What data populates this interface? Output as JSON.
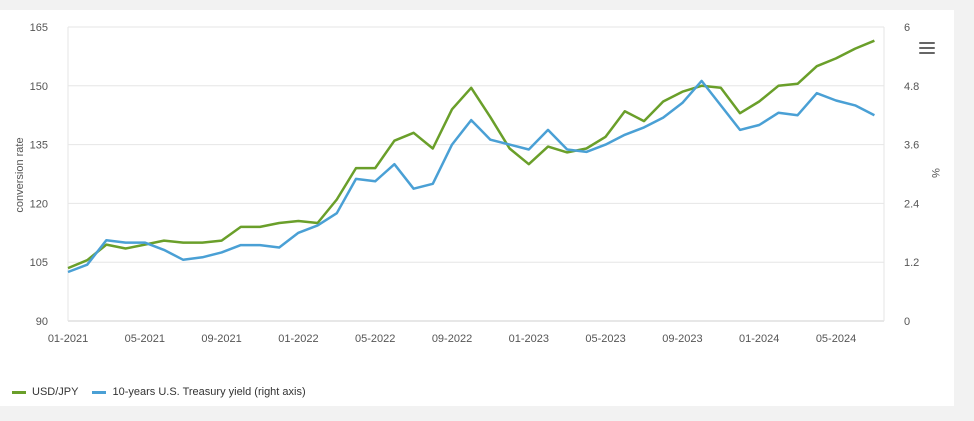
{
  "chart_data": {
    "type": "line",
    "x_ticks": [
      "01-2021",
      "05-2021",
      "09-2021",
      "01-2022",
      "05-2022",
      "09-2022",
      "01-2023",
      "05-2023",
      "09-2023",
      "01-2024",
      "05-2024"
    ],
    "y_left": {
      "label": "conversion rate",
      "ticks": [
        "90",
        "105",
        "120",
        "135",
        "150",
        "165"
      ],
      "range": [
        90,
        165
      ]
    },
    "y_right": {
      "label": "%",
      "ticks": [
        "0",
        "1.2",
        "2.4",
        "3.6",
        "4.8",
        "6"
      ],
      "range": [
        0,
        6
      ]
    },
    "grid": true,
    "legend_position": "bottom-left",
    "series": [
      {
        "name": "USD/JPY",
        "axis": "left",
        "color": "#6a9f2a",
        "x": [
          "2021-01",
          "2021-02",
          "2021-03",
          "2021-04",
          "2021-05",
          "2021-06",
          "2021-07",
          "2021-08",
          "2021-09",
          "2021-10",
          "2021-11",
          "2021-12",
          "2022-01",
          "2022-02",
          "2022-03",
          "2022-04",
          "2022-05",
          "2022-06",
          "2022-07",
          "2022-08",
          "2022-09",
          "2022-10",
          "2022-11",
          "2022-12",
          "2023-01",
          "2023-02",
          "2023-03",
          "2023-04",
          "2023-05",
          "2023-06",
          "2023-07",
          "2023-08",
          "2023-09",
          "2023-10",
          "2023-11",
          "2023-12",
          "2024-01",
          "2024-02",
          "2024-03",
          "2024-04",
          "2024-05",
          "2024-06",
          "2024-07"
        ],
        "values": [
          103.5,
          105.5,
          109.5,
          108.5,
          109.5,
          110.5,
          110.0,
          110.0,
          110.5,
          114.0,
          114.0,
          115.0,
          115.5,
          115.0,
          121.0,
          129.0,
          129.0,
          136.0,
          138.0,
          134.0,
          144.0,
          149.5,
          142.0,
          134.0,
          130.0,
          134.5,
          133.0,
          134.0,
          137.0,
          143.5,
          141.0,
          146.0,
          148.5,
          150.0,
          149.5,
          143.0,
          146.0,
          150.0,
          150.5,
          155.0,
          157.0,
          159.5,
          161.5
        ]
      },
      {
        "name": "10-years U.S. Treasury yield (right axis)",
        "axis": "right",
        "color": "#4aa0d5",
        "x": [
          "2021-01",
          "2021-02",
          "2021-03",
          "2021-04",
          "2021-05",
          "2021-06",
          "2021-07",
          "2021-08",
          "2021-09",
          "2021-10",
          "2021-11",
          "2021-12",
          "2022-01",
          "2022-02",
          "2022-03",
          "2022-04",
          "2022-05",
          "2022-06",
          "2022-07",
          "2022-08",
          "2022-09",
          "2022-10",
          "2022-11",
          "2022-12",
          "2023-01",
          "2023-02",
          "2023-03",
          "2023-04",
          "2023-05",
          "2023-06",
          "2023-07",
          "2023-08",
          "2023-09",
          "2023-10",
          "2023-11",
          "2023-12",
          "2024-01",
          "2024-02",
          "2024-03",
          "2024-04",
          "2024-05",
          "2024-06",
          "2024-07"
        ],
        "values": [
          1.0,
          1.15,
          1.65,
          1.6,
          1.6,
          1.45,
          1.25,
          1.3,
          1.4,
          1.55,
          1.55,
          1.5,
          1.8,
          1.95,
          2.2,
          2.9,
          2.85,
          3.2,
          2.7,
          2.8,
          3.6,
          4.1,
          3.7,
          3.6,
          3.5,
          3.9,
          3.5,
          3.45,
          3.6,
          3.8,
          3.95,
          4.15,
          4.45,
          4.9,
          4.4,
          3.9,
          4.0,
          4.25,
          4.2,
          4.65,
          4.5,
          4.4,
          4.2
        ]
      }
    ]
  },
  "menu": {
    "icon": "hamburger-menu-icon"
  }
}
